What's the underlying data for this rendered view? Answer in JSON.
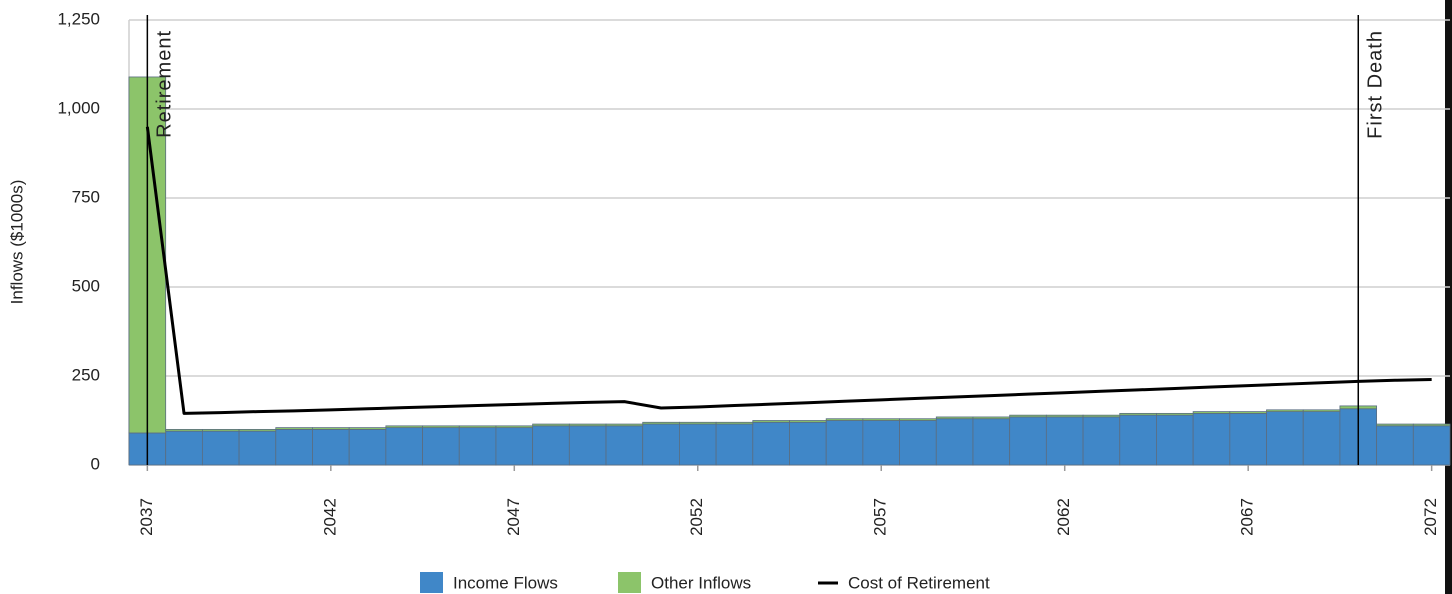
{
  "chart_data": {
    "type": "bar",
    "ylabel": "Inflows ($1000s)",
    "x": [
      2037,
      2038,
      2039,
      2040,
      2041,
      2042,
      2043,
      2044,
      2045,
      2046,
      2047,
      2048,
      2049,
      2050,
      2051,
      2052,
      2053,
      2054,
      2055,
      2056,
      2057,
      2058,
      2059,
      2060,
      2061,
      2062,
      2063,
      2064,
      2065,
      2066,
      2067,
      2068,
      2069,
      2070,
      2071,
      2072
    ],
    "series": [
      {
        "name": "Income Flows",
        "color": "#4087c8",
        "kind": "bar",
        "values": [
          90,
          95,
          95,
          95,
          100,
          100,
          100,
          105,
          105,
          105,
          105,
          110,
          110,
          110,
          115,
          115,
          115,
          120,
          120,
          125,
          125,
          125,
          130,
          130,
          135,
          135,
          135,
          140,
          140,
          145,
          145,
          150,
          150,
          158,
          110,
          110
        ]
      },
      {
        "name": "Other Inflows",
        "color": "#8cc46a",
        "kind": "bar",
        "values": [
          1000,
          5,
          5,
          5,
          5,
          5,
          5,
          5,
          5,
          5,
          5,
          5,
          5,
          5,
          5,
          5,
          5,
          5,
          5,
          5,
          5,
          5,
          5,
          5,
          5,
          5,
          5,
          5,
          5,
          5,
          5,
          5,
          5,
          8,
          5,
          5
        ]
      },
      {
        "name": "Cost of Retirement",
        "color": "#000000",
        "kind": "line",
        "values": [
          950,
          145,
          147,
          150,
          152,
          155,
          158,
          161,
          164,
          167,
          170,
          173,
          176,
          178,
          160,
          163,
          167,
          171,
          175,
          179,
          183,
          187,
          191,
          195,
          199,
          203,
          207,
          211,
          215,
          219,
          223,
          227,
          231,
          235,
          238,
          240
        ]
      }
    ],
    "annotations": [
      {
        "label": "Retirement",
        "x": 2037
      },
      {
        "label": "First Death",
        "x": 2070
      }
    ],
    "xlim": [
      2036.5,
      2072.5
    ],
    "xticks": [
      2037,
      2042,
      2047,
      2052,
      2057,
      2062,
      2067,
      2072
    ],
    "ylim": [
      0,
      1250
    ],
    "yticks": [
      0,
      250,
      500,
      750,
      {
        "value": 1000,
        "label": "1,000"
      },
      {
        "value": 1250,
        "label": "1,250"
      }
    ],
    "grid": true,
    "legend": "bottom"
  }
}
